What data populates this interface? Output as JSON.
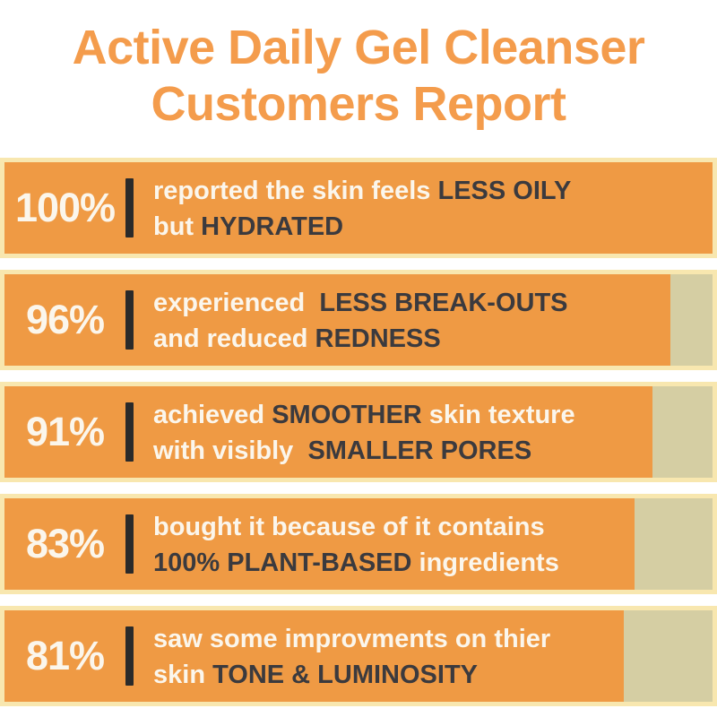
{
  "title": {
    "line1": "Active Daily Gel Cleanser",
    "line2": "Customers Report"
  },
  "colors": {
    "title_orange": "#F49C4C",
    "bar_orange": "#EF9A44",
    "track_khaki": "#D5CEA3",
    "edge_cream": "#F8E7AF",
    "text_light": "#FBF6EC",
    "text_dark": "#3B3A3E",
    "divider_dark": "#2A2A2A",
    "background": "#FFFFFF"
  },
  "rows": [
    {
      "percent": "100%",
      "value": 100,
      "bar_width": "100%",
      "lines": [
        [
          {
            "t": "reported the skin feels ",
            "d": false
          },
          {
            "t": "LESS OILY",
            "d": true
          }
        ],
        [
          {
            "t": "but ",
            "d": false
          },
          {
            "t": "HYDRATED",
            "d": true
          }
        ]
      ]
    },
    {
      "percent": "96%",
      "value": 96,
      "bar_width": "94%",
      "lines": [
        [
          {
            "t": "experienced  ",
            "d": false
          },
          {
            "t": "LESS BREAK-OUTS",
            "d": true
          }
        ],
        [
          {
            "t": "and reduced ",
            "d": false
          },
          {
            "t": "REDNESS",
            "d": true
          }
        ]
      ]
    },
    {
      "percent": "91%",
      "value": 91,
      "bar_width": "91.5%",
      "lines": [
        [
          {
            "t": "achieved ",
            "d": false
          },
          {
            "t": "SMOOTHER",
            "d": true
          },
          {
            "t": " skin texture",
            "d": false
          }
        ],
        [
          {
            "t": "with visibly  ",
            "d": false
          },
          {
            "t": "SMALLER PORES",
            "d": true
          }
        ]
      ]
    },
    {
      "percent": "83%",
      "value": 83,
      "bar_width": "89%",
      "lines": [
        [
          {
            "t": "bought it because of it contains",
            "d": false
          }
        ],
        [
          {
            "t": "100% PLANT-BASED",
            "d": true
          },
          {
            "t": " ingredients",
            "d": false
          }
        ]
      ]
    },
    {
      "percent": "81%",
      "value": 81,
      "bar_width": "87.5%",
      "lines": [
        [
          {
            "t": "saw some improvments on thier",
            "d": false
          }
        ],
        [
          {
            "t": "skin ",
            "d": false
          },
          {
            "t": "TONE & LUMINOSITY",
            "d": true
          }
        ]
      ]
    }
  ],
  "chart_data": {
    "type": "bar",
    "orientation": "horizontal",
    "title": "Active Daily Gel Cleanser Customers Report",
    "categories": [
      "reported the skin feels LESS OILY but HYDRATED",
      "experienced LESS BREAK-OUTS and reduced REDNESS",
      "achieved SMOOTHER skin texture with visibly SMALLER PORES",
      "bought it because of it contains 100% PLANT-BASED ingredients",
      "saw some improvments on thier skin TONE & LUMINOSITY"
    ],
    "values": [
      100,
      96,
      91,
      83,
      81
    ],
    "unit": "%",
    "xlim": [
      0,
      100
    ],
    "grid": false,
    "legend": false
  }
}
